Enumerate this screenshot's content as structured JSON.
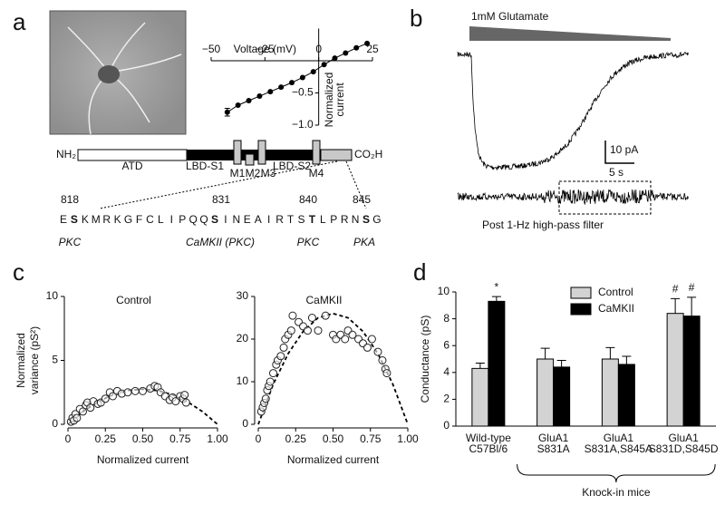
{
  "panel_labels": [
    "a",
    "b",
    "c",
    "d"
  ],
  "diagram": {
    "n_terminus": "NH₂",
    "c_terminus": "CO₂H",
    "domains": [
      "ATD",
      "LBD-S1",
      "M1",
      "M2",
      "M3",
      "LBD-S2",
      "M4"
    ],
    "residue_numbers": [
      "818",
      "831",
      "840",
      "845"
    ],
    "sequence": [
      {
        "text": "E"
      },
      {
        "text": "S",
        "bold": true
      },
      {
        "text": "K"
      },
      {
        "text": "M"
      },
      {
        "text": "R"
      },
      {
        "text": "K"
      },
      {
        "text": "G"
      },
      {
        "text": "F"
      },
      {
        "text": "C"
      },
      {
        "text": "L"
      },
      {
        "text": "I"
      },
      {
        "text": "P"
      },
      {
        "text": "Q"
      },
      {
        "text": "Q"
      },
      {
        "text": "S",
        "bold": true
      },
      {
        "text": "I"
      },
      {
        "text": "N"
      },
      {
        "text": "E"
      },
      {
        "text": "A"
      },
      {
        "text": "I"
      },
      {
        "text": "R"
      },
      {
        "text": "T"
      },
      {
        "text": "S"
      },
      {
        "text": "T",
        "bold": true
      },
      {
        "text": "L"
      },
      {
        "text": "P"
      },
      {
        "text": "R"
      },
      {
        "text": "N"
      },
      {
        "text": "S",
        "bold": true
      },
      {
        "text": "G"
      }
    ],
    "kinases": [
      "PKC",
      "CaMKII (PKC)",
      "PKC",
      "PKA"
    ]
  },
  "traces": {
    "stimulus": "1mM Glutamate",
    "scale_y": "10 pA",
    "scale_x": "5 s",
    "filter_label": "Post 1-Hz high-pass filter"
  },
  "chart_data": [
    {
      "type": "line",
      "xlabel": "Voltage (mV)",
      "ylabel": [
        "Normalized",
        "current"
      ],
      "xlim": [
        -50,
        25
      ],
      "ylim": [
        -1.0,
        0.5
      ],
      "xticks": [
        {
          "value": -50,
          "label": "−50"
        },
        {
          "value": -25,
          "label": "−25"
        },
        0,
        25
      ],
      "yticks": [
        {
          "value": -0.5,
          "label": "−0.5"
        },
        {
          "value": -1.0,
          "label": "−1.0"
        }
      ],
      "x": [
        -42.5,
        -37.5,
        -32.5,
        -27.5,
        -22.5,
        -17.5,
        -12.5,
        -7.5,
        -2.5,
        2.5,
        7.5,
        12.5,
        17.5,
        22.5
      ],
      "series": [
        {
          "color": "#000000",
          "values": [
            -0.8,
            -0.69,
            -0.62,
            -0.55,
            -0.48,
            -0.41,
            -0.34,
            -0.26,
            -0.17,
            -0.06,
            0.04,
            0.12,
            0.2,
            0.27
          ],
          "errors": [
            0.06,
            null,
            null,
            null,
            null,
            null,
            null,
            null,
            null,
            null,
            null,
            null,
            null,
            null
          ]
        }
      ]
    },
    {
      "type": "scatter",
      "title": "Control",
      "xlabel": "Normalized current",
      "ylabel": [
        "Normalized",
        "variance (pS²)"
      ],
      "xlim": [
        0,
        1
      ],
      "ylim": [
        0,
        10
      ],
      "xticks": [
        0,
        0.25,
        {
          "value": 0.5,
          "label": "0.50"
        },
        0.75,
        {
          "value": 1,
          "label": "1.00"
        }
      ],
      "yticks": [
        0,
        5,
        10
      ],
      "x": [
        0.02,
        0.03,
        0.04,
        0.05,
        0.06,
        0.08,
        0.1,
        0.12,
        0.13,
        0.15,
        0.17,
        0.2,
        0.22,
        0.25,
        0.28,
        0.3,
        0.33,
        0.36,
        0.4,
        0.45,
        0.5,
        0.55,
        0.58,
        0.6,
        0.62,
        0.65,
        0.68,
        0.7,
        0.72,
        0.75,
        0.77,
        0.78,
        0.79
      ],
      "values": [
        0.2,
        0.5,
        0.3,
        0.8,
        0.5,
        1.2,
        1.0,
        1.5,
        1.7,
        1.3,
        1.8,
        1.6,
        1.7,
        2.0,
        2.5,
        2.2,
        2.6,
        2.4,
        2.5,
        2.6,
        2.6,
        2.8,
        3.0,
        2.9,
        2.5,
        2.2,
        1.9,
        2.1,
        1.8,
        2.2,
        2.0,
        2.3,
        1.7
      ],
      "fit": {
        "x": [
          0,
          0.1,
          0.2,
          0.3,
          0.4,
          0.5,
          0.6,
          0.7,
          0.8,
          0.9,
          1.0
        ],
        "values": [
          0,
          0.99,
          1.76,
          2.31,
          2.64,
          2.75,
          2.64,
          2.31,
          1.76,
          0.99,
          0
        ],
        "style": "dashed"
      }
    },
    {
      "type": "scatter",
      "title": "CaMKII",
      "xlabel": "Normalized current",
      "xlim": [
        0,
        1
      ],
      "ylim": [
        0,
        30
      ],
      "xticks": [
        0,
        0.25,
        {
          "value": 0.5,
          "label": "0.50"
        },
        0.75,
        {
          "value": 1,
          "label": "1.00"
        }
      ],
      "yticks": [
        0,
        10,
        20,
        30
      ],
      "x": [
        0.02,
        0.03,
        0.04,
        0.05,
        0.06,
        0.07,
        0.08,
        0.1,
        0.12,
        0.13,
        0.15,
        0.17,
        0.18,
        0.2,
        0.22,
        0.23,
        0.27,
        0.3,
        0.33,
        0.36,
        0.4,
        0.45,
        0.5,
        0.52,
        0.55,
        0.58,
        0.6,
        0.63,
        0.67,
        0.7,
        0.73,
        0.76,
        0.8,
        0.83,
        0.85,
        0.86
      ],
      "values": [
        3,
        4,
        5,
        6,
        8,
        9,
        10,
        12,
        14,
        15,
        16,
        18,
        20,
        21,
        22,
        25.5,
        24,
        23,
        22,
        25,
        22,
        25.5,
        21,
        20,
        21,
        20,
        22,
        21,
        20,
        19,
        18,
        20,
        17,
        15,
        13,
        12
      ],
      "fit": {
        "x": [
          0,
          0.1,
          0.2,
          0.3,
          0.4,
          0.5,
          0.6,
          0.7,
          0.8,
          0.9,
          1.0
        ],
        "values": [
          0,
          9.4,
          16.6,
          21.8,
          25,
          26,
          25,
          21.8,
          16.6,
          9.4,
          0
        ],
        "style": "dashed"
      }
    },
    {
      "type": "bar",
      "ylabel": "Conductance (pS)",
      "ylim": [
        0,
        10
      ],
      "yticks": [
        0,
        2,
        4,
        6,
        8,
        10
      ],
      "categories": [
        [
          "Wild-type",
          "C57Bl/6"
        ],
        [
          "GluA1",
          "S831A"
        ],
        [
          "GluA1",
          "S831A,S845A"
        ],
        [
          "GluA1",
          "S831D,S845D"
        ]
      ],
      "series": [
        {
          "name": "Control",
          "color": "#d3d3d3",
          "values": [
            4.3,
            5.0,
            5.0,
            8.4
          ],
          "errors": [
            0.4,
            0.8,
            0.85,
            1.1
          ]
        },
        {
          "name": "CaMKII",
          "color": "#000000",
          "values": [
            9.3,
            4.4,
            4.6,
            8.2
          ],
          "errors": [
            0.35,
            0.5,
            0.6,
            1.4
          ]
        }
      ],
      "annotations": [
        "*",
        "#",
        "#"
      ],
      "group_label": "Knock-in mice",
      "legend": "top"
    }
  ]
}
